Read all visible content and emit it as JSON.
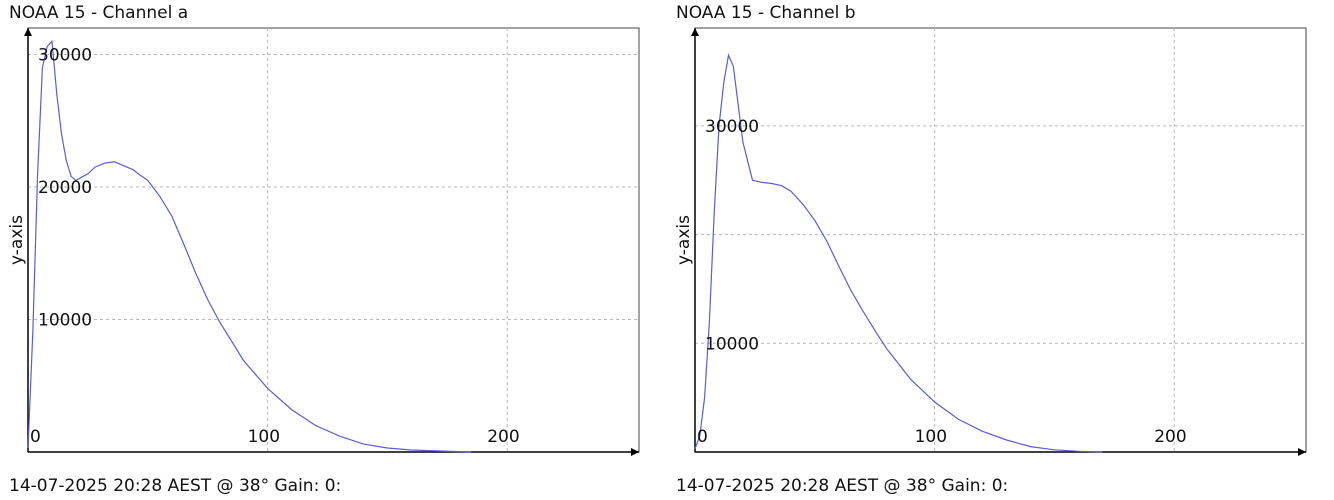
{
  "colors": {
    "series": "#5c5cd6",
    "grid": "#b8b8b8",
    "axis": "#000000",
    "frame": "#444444"
  },
  "chart_data": [
    {
      "type": "line",
      "title": "NOAA 15 - Channel a",
      "ylabel": "y-axis",
      "xlabel": "",
      "status": "14-07-2025 20:28 AEST @ 38° Gain: 0:",
      "xlim": [
        0,
        255
      ],
      "ylim": [
        0,
        32000
      ],
      "x_ticks": [
        0,
        100,
        200
      ],
      "x_gridlines": [
        100,
        200
      ],
      "y_ticks": [
        10000,
        20000,
        30000
      ],
      "grid": true,
      "series": [
        {
          "x": [
            0,
            2,
            4,
            6,
            8,
            10,
            12,
            14,
            16,
            18,
            20,
            22,
            25,
            28,
            32,
            36,
            40,
            44,
            46,
            50,
            55,
            60,
            65,
            70,
            75,
            80,
            90,
            100,
            110,
            120,
            130,
            140,
            150,
            160,
            170,
            180,
            185
          ],
          "y": [
            300,
            9000,
            21000,
            29000,
            30600,
            31000,
            27000,
            24000,
            22000,
            20800,
            20500,
            20700,
            21000,
            21500,
            21800,
            21900,
            21600,
            21300,
            21000,
            20500,
            19300,
            17800,
            15700,
            13500,
            11500,
            9800,
            6900,
            4800,
            3200,
            2000,
            1200,
            600,
            300,
            150,
            80,
            30,
            0
          ]
        }
      ]
    },
    {
      "type": "line",
      "title": "NOAA 15 - Channel b",
      "ylabel": "y-axis",
      "xlabel": "",
      "status": "14-07-2025 20:28 AEST @ 38° Gain: 0:",
      "xlim": [
        0,
        255
      ],
      "ylim": [
        0,
        39000
      ],
      "x_ticks": [
        0,
        100,
        200
      ],
      "x_gridlines": [
        100,
        200
      ],
      "y_ticks": [
        10000,
        30000
      ],
      "y_gridlines": [
        10000,
        20000,
        30000
      ],
      "grid": true,
      "series": [
        {
          "x": [
            0,
            2,
            4,
            6,
            8,
            10,
            12,
            14,
            16,
            18,
            20,
            24,
            28,
            32,
            36,
            40,
            45,
            50,
            55,
            60,
            65,
            70,
            75,
            80,
            90,
            100,
            110,
            120,
            130,
            140,
            150,
            160,
            170
          ],
          "y": [
            300,
            1500,
            5000,
            12000,
            22000,
            30000,
            34000,
            36500,
            35500,
            32000,
            28500,
            25000,
            24800,
            24700,
            24500,
            24000,
            22800,
            21300,
            19400,
            17100,
            14900,
            13000,
            11200,
            9500,
            6700,
            4600,
            3000,
            1900,
            1100,
            500,
            200,
            60,
            0
          ]
        }
      ]
    }
  ]
}
